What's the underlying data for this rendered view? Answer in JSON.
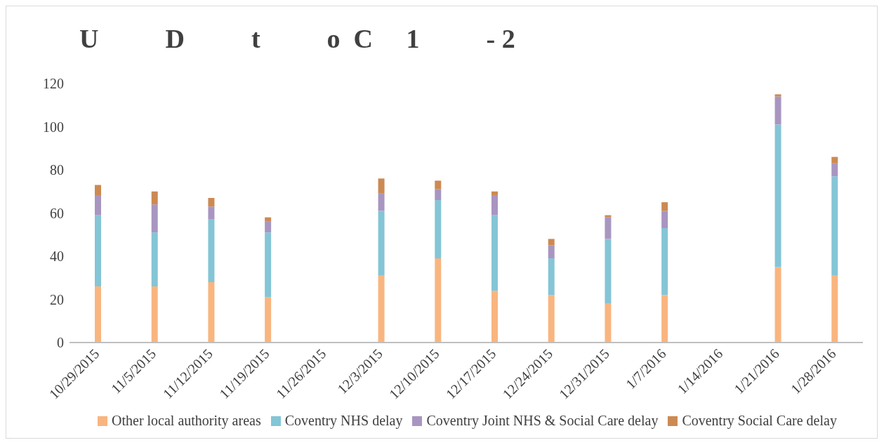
{
  "chart_data": {
    "type": "bar",
    "title": "U          D          t          o  C     1          - 2",
    "stacked": true,
    "categories": [
      "10/29/2015",
      "11/5/2015",
      "11/12/2015",
      "11/19/2015",
      "11/26/2015",
      "12/3/2015",
      "12/10/2015",
      "12/17/2015",
      "12/24/2015",
      "12/31/2015",
      "1/7/2016",
      "1/14/2016",
      "1/21/2016",
      "1/28/2016"
    ],
    "series": [
      {
        "name": "Other local authority areas",
        "color": "#f9b57f",
        "values": [
          26,
          26,
          28,
          21,
          null,
          31,
          39,
          24,
          22,
          18,
          22,
          null,
          35,
          31
        ]
      },
      {
        "name": "Coventry NHS delay",
        "color": "#84c5d6",
        "values": [
          33,
          25,
          29,
          30,
          null,
          30,
          27,
          35,
          17,
          30,
          31,
          null,
          66,
          46
        ]
      },
      {
        "name": "Coventry Joint NHS & Social Care delay",
        "color": "#a896c1",
        "values": [
          9,
          13,
          6,
          5,
          null,
          8,
          5,
          9,
          6,
          10,
          8,
          null,
          13,
          6
        ]
      },
      {
        "name": "Coventry Social Care delay",
        "color": "#cc8a52",
        "values": [
          5,
          6,
          4,
          2,
          null,
          7,
          4,
          2,
          3,
          1,
          4,
          null,
          1,
          3
        ]
      }
    ],
    "ylim": [
      0,
      120
    ],
    "yticks": [
      0,
      20,
      40,
      60,
      80,
      100,
      120
    ],
    "grid": false,
    "legend": "bottom"
  }
}
